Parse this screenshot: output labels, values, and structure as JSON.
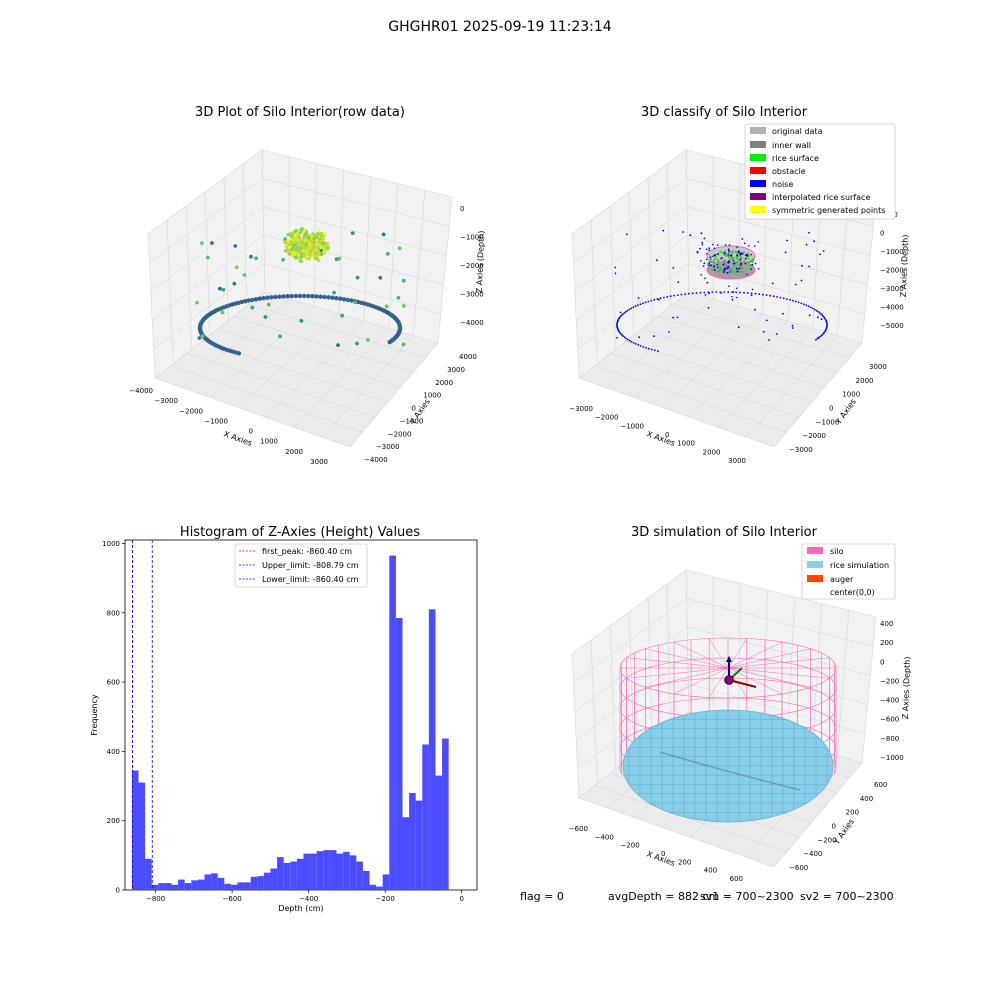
{
  "suptitle": "GHGHR01 2025-09-19 11:23:14",
  "footer": {
    "flag": "flag = 0",
    "avg": "avgDepth = 882 cm",
    "sv1": "sv1 = 700~2300",
    "sv2": "sv2 = 700~2300"
  },
  "colors": {
    "original": "#b0b0b0",
    "inner_wall": "#808080",
    "rice_surface": "#00ee00",
    "obstacle": "#ff0000",
    "noise": "#0000ff",
    "interpolated": "#800080",
    "symmetric": "#ffff00",
    "silo": "#ff69b4",
    "rice_sim": "#87ceeb",
    "auger": "#ff4500",
    "hist": "#4b4bff"
  },
  "chart_data": [
    {
      "id": "raw",
      "type": "scatter",
      "title": "3D Plot of Silo Interior(row data)",
      "xlabel": "X Axies",
      "ylabel": "Y Axies",
      "zlabel": "Z Axies (Depth)",
      "xticks": [
        "−4000",
        "−3000",
        "−2000",
        "−1000",
        "0",
        "1000",
        "2000",
        "3000"
      ],
      "yticks": [
        "−4000",
        "−3000",
        "−2000",
        "−1000",
        "0",
        "1000",
        "2000",
        "3000",
        "4000"
      ],
      "zticks": [
        "0",
        "−1000",
        "−2000",
        "−3000",
        "−4000"
      ],
      "colormap": "viridis",
      "description_series": [
        {
          "name": "",
          "x_range": [
            -3800,
            3600
          ],
          "z_range": [
            -4400,
            -1200
          ]
        }
      ]
    },
    {
      "id": "classify",
      "type": "scatter",
      "title": "3D classify of Silo Interior",
      "xlabel": "X Axies",
      "ylabel": "Y Axies",
      "zlabel": "Z Axies (Depth)",
      "xticks": [
        "−3000",
        "−2000",
        "−1000",
        "0",
        "1000",
        "2000",
        "3000"
      ],
      "yticks": [
        "−3000",
        "−2000",
        "−1000",
        "0",
        "1000",
        "2000",
        "3000"
      ],
      "zticks": [
        "1000",
        "0",
        "−1000",
        "−2000",
        "−3000",
        "−4000",
        "−5000"
      ],
      "legend": [
        "original data",
        "inner wall",
        "rice surface",
        "obstacle",
        "noise",
        "interpolated rice surface",
        "symmetric generated points"
      ],
      "legend_loc": "upper right"
    },
    {
      "id": "hist",
      "type": "bar",
      "title": "Histogram of Z-Axies (Height) Values",
      "xlabel": "Depth (cm)",
      "ylabel": "Frequency",
      "xlim": [
        -880,
        40
      ],
      "ylim": [
        0,
        1010
      ],
      "xticks": [
        -800,
        -600,
        -400,
        -200,
        0
      ],
      "yticks": [
        0,
        200,
        400,
        600,
        800,
        1000
      ],
      "bin_start": -862,
      "bin_width": 17.25,
      "values": [
        345,
        310,
        90,
        15,
        20,
        20,
        15,
        30,
        20,
        28,
        30,
        45,
        48,
        35,
        18,
        15,
        22,
        22,
        38,
        40,
        50,
        62,
        95,
        78,
        82,
        90,
        105,
        105,
        112,
        115,
        115,
        105,
        110,
        100,
        82,
        55,
        15,
        10,
        45,
        965,
        785,
        210,
        280,
        258,
        420,
        810,
        330,
        437
      ],
      "vlines": [
        {
          "label": "first_peak: -860.40 cm",
          "x": -860.4,
          "color": "#ff0000"
        },
        {
          "label": "Upper_limit: -808.79 cm",
          "x": -808.79,
          "color": "#0000ff"
        },
        {
          "label": "Lower_limit: -860.40 cm",
          "x": -860.4,
          "color": "#0000ff"
        }
      ],
      "legend_loc": "upper center"
    },
    {
      "id": "sim",
      "type": "surface",
      "title": "3D simulation of Silo Interior",
      "xlabel": "X Axies",
      "ylabel": "Y Axies",
      "zlabel": "Z Axies (Depth)",
      "xticks": [
        "−600",
        "−400",
        "−200",
        "0",
        "200",
        "400",
        "600"
      ],
      "yticks": [
        "−600",
        "−400",
        "−200",
        "0",
        "200",
        "400",
        "600"
      ],
      "zticks": [
        "400",
        "200",
        "0",
        "−200",
        "−400",
        "−600",
        "−800",
        "−1000"
      ],
      "legend": [
        "silo",
        "rice simulation",
        "auger",
        "center(0,0)"
      ],
      "legend_loc": "upper right"
    }
  ]
}
